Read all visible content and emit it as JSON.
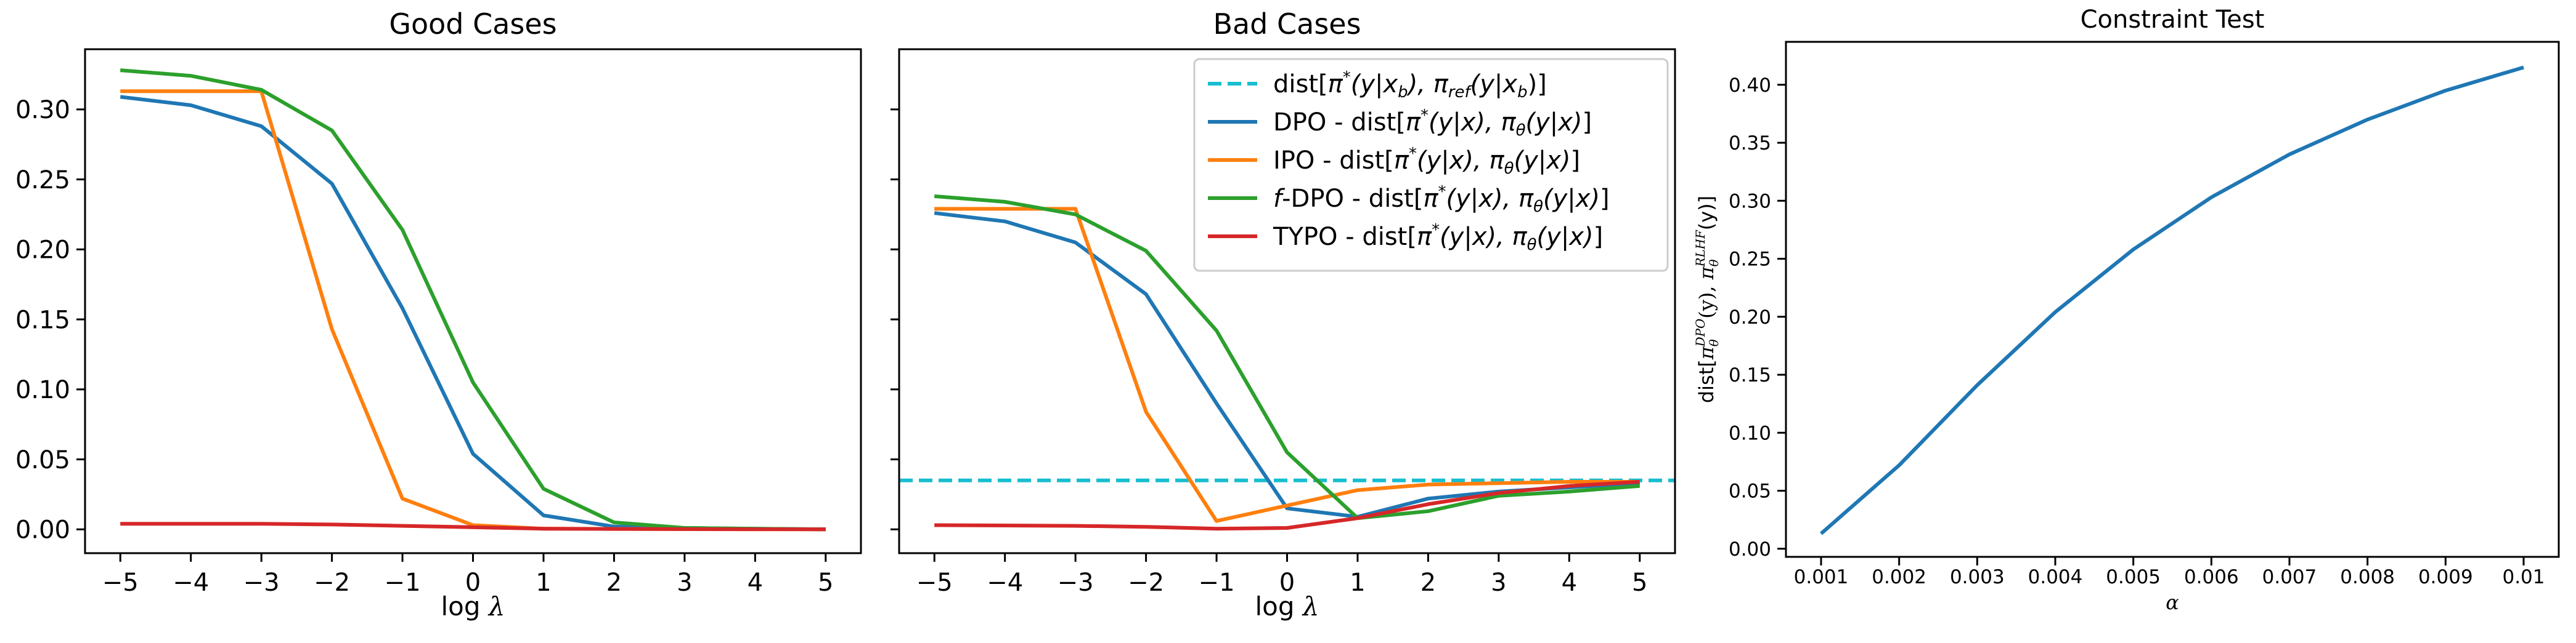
{
  "chart_data": [
    {
      "type": "line",
      "title": "Good Cases",
      "xlabel": "log λ",
      "ylabel": "",
      "x": [
        -5,
        -4,
        -3,
        -2,
        -1,
        0,
        1,
        2,
        3,
        4,
        5
      ],
      "xlim": [
        -5.5,
        5.5
      ],
      "ylim": [
        -0.017,
        0.343
      ],
      "yticks": [
        0.0,
        0.05,
        0.1,
        0.15,
        0.2,
        0.25,
        0.3
      ],
      "yticklabels": [
        "0.00",
        "0.05",
        "0.10",
        "0.15",
        "0.20",
        "0.25",
        "0.30"
      ],
      "xticklabels": [
        "−5",
        "−4",
        "−3",
        "−2",
        "−1",
        "0",
        "1",
        "2",
        "3",
        "4",
        "5"
      ],
      "show_ytick_labels": true,
      "legend": null,
      "series": [
        {
          "color": "#1f77b4",
          "values": [
            0.309,
            0.303,
            0.288,
            0.247,
            0.158,
            0.054,
            0.01,
            0.002,
            0.001,
            0.0005,
            0.0
          ]
        },
        {
          "color": "#ff7f0e",
          "values": [
            0.313,
            0.313,
            0.313,
            0.143,
            0.022,
            0.003,
            0.0005,
            0.0003,
            0.0002,
            0.0001,
            0.0
          ]
        },
        {
          "color": "#2ca02c",
          "values": [
            0.328,
            0.324,
            0.314,
            0.285,
            0.214,
            0.105,
            0.029,
            0.005,
            0.001,
            0.0005,
            0.0
          ]
        },
        {
          "color": "#d62728",
          "values": [
            0.004,
            0.004,
            0.004,
            0.0035,
            0.0025,
            0.0015,
            0.0005,
            0.0003,
            0.0002,
            0.0001,
            0.0
          ]
        }
      ]
    },
    {
      "type": "line",
      "title": "Bad Cases",
      "xlabel": "log λ",
      "ylabel": "",
      "x": [
        -5,
        -4,
        -3,
        -2,
        -1,
        0,
        1,
        2,
        3,
        4,
        5
      ],
      "xlim": [
        -5.5,
        5.5
      ],
      "ylim": [
        -0.017,
        0.343
      ],
      "yticks": [
        0.0,
        0.05,
        0.1,
        0.15,
        0.2,
        0.25,
        0.3
      ],
      "yticklabels": [
        "",
        "",
        "",
        "",
        "",
        "",
        ""
      ],
      "xticklabels": [
        "−5",
        "−4",
        "−3",
        "−2",
        "−1",
        "0",
        "1",
        "2",
        "3",
        "4",
        "5"
      ],
      "show_ytick_labels": false,
      "legend": "top-right",
      "reference_line": {
        "y": 0.035,
        "color": "#17becf",
        "label_base": "dist[",
        "label_pi": "π",
        "label_sup": "*",
        "label_mid": "(y|x",
        "label_sub": "b",
        "label_mid2": "), π",
        "label_sub2": "ref",
        "label_end": "(y|x",
        "label_sub3": "b",
        "label_end2": ")]"
      },
      "series": [
        {
          "name": "DPO - dist[π*(y|x), πθ(y|x)]",
          "name_prefix": "DPO",
          "color": "#1f77b4",
          "values": [
            0.226,
            0.22,
            0.205,
            0.168,
            0.09,
            0.015,
            0.009,
            0.022,
            0.027,
            0.03,
            0.033
          ]
        },
        {
          "name": "IPO - dist[π*(y|x), πθ(y|x)]",
          "name_prefix": "IPO",
          "color": "#ff7f0e",
          "values": [
            0.229,
            0.229,
            0.229,
            0.084,
            0.006,
            0.017,
            0.028,
            0.032,
            0.033,
            0.034,
            0.034
          ]
        },
        {
          "name": "f-DPO - dist[π*(y|x), πθ(y|x)]",
          "name_prefix": "f-DPO",
          "color": "#2ca02c",
          "values": [
            0.238,
            0.234,
            0.225,
            0.199,
            0.142,
            0.055,
            0.008,
            0.013,
            0.024,
            0.027,
            0.031
          ]
        },
        {
          "name": "TYPO - dist[π*(y|x), πθ(y|x)]",
          "name_prefix": "TYPO",
          "color": "#d62728",
          "values": [
            0.003,
            0.0028,
            0.0025,
            0.0018,
            0.0005,
            0.001,
            0.008,
            0.018,
            0.026,
            0.031,
            0.034
          ]
        }
      ]
    },
    {
      "type": "line",
      "title": "Constraint Test",
      "xlabel": "α",
      "ylabel": "dist[πθDPO(y), πθRLHF(y)]",
      "x": [
        0.001,
        0.002,
        0.003,
        0.004,
        0.005,
        0.006,
        0.007,
        0.008,
        0.009,
        0.01
      ],
      "xlim": [
        0.00055,
        0.01045
      ],
      "ylim": [
        -0.007,
        0.437
      ],
      "yticks": [
        0.0,
        0.05,
        0.1,
        0.15,
        0.2,
        0.25,
        0.3,
        0.35,
        0.4
      ],
      "yticklabels": [
        "0.00",
        "0.05",
        "0.10",
        "0.15",
        "0.20",
        "0.25",
        "0.30",
        "0.35",
        "0.40"
      ],
      "xticklabels": [
        "0.001",
        "0.002",
        "0.003",
        "0.004",
        "0.005",
        "0.006",
        "0.007",
        "0.008",
        "0.009",
        "0.01"
      ],
      "show_ytick_labels": true,
      "legend": null,
      "series": [
        {
          "color": "#1f77b4",
          "values": [
            0.013,
            0.072,
            0.141,
            0.204,
            0.258,
            0.303,
            0.34,
            0.37,
            0.395,
            0.415
          ]
        }
      ]
    }
  ]
}
